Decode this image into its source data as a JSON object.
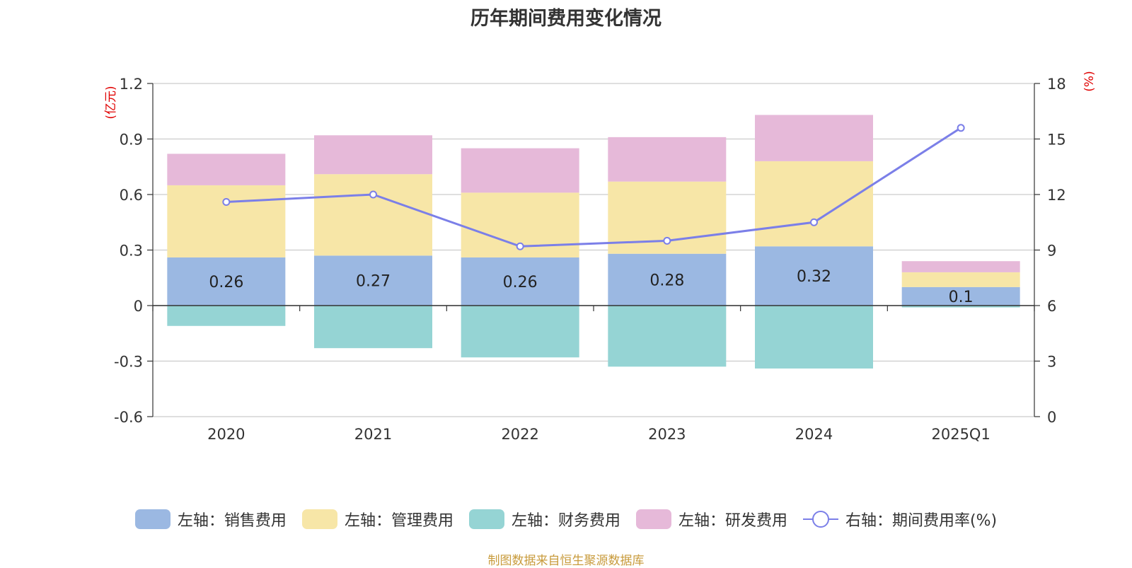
{
  "chart_data": {
    "type": "bar",
    "title": "历年期间费用变化情况",
    "categories": [
      "2020",
      "2021",
      "2022",
      "2023",
      "2024",
      "2025Q1"
    ],
    "left_axis": {
      "unit_label": "(亿元)",
      "ylim": [
        -0.6,
        1.2
      ],
      "ticks": [
        "1.2",
        "0.9",
        "0.6",
        "0.3",
        "0",
        "-0.3",
        "-0.6"
      ]
    },
    "right_axis": {
      "unit_label": "(%)",
      "ylim": [
        0,
        18
      ],
      "ticks": [
        "18",
        "15",
        "12",
        "9",
        "6",
        "3",
        "0"
      ]
    },
    "series": [
      {
        "name": "左轴：销售费用",
        "type": "bar",
        "axis": "left",
        "color": "#9bb8e2",
        "values": [
          0.26,
          0.27,
          0.26,
          0.28,
          0.32,
          0.1
        ],
        "labels": [
          "0.26",
          "0.27",
          "0.26",
          "0.28",
          "0.32",
          "0.1"
        ]
      },
      {
        "name": "左轴：管理费用",
        "type": "bar",
        "axis": "left",
        "color": "#f7e6a7",
        "values": [
          0.39,
          0.44,
          0.35,
          0.39,
          0.46,
          0.08
        ]
      },
      {
        "name": "左轴：财务费用",
        "type": "bar",
        "axis": "left",
        "color": "#95d4d4",
        "values": [
          -0.11,
          -0.23,
          -0.28,
          -0.33,
          -0.34,
          -0.01
        ]
      },
      {
        "name": "左轴：研发费用",
        "type": "bar",
        "axis": "left",
        "color": "#e6b9d9",
        "values": [
          0.17,
          0.21,
          0.24,
          0.24,
          0.25,
          0.06
        ]
      },
      {
        "name": "右轴：期间费用率(%)",
        "type": "line",
        "axis": "right",
        "color": "#7b7fe8",
        "values": [
          11.6,
          12.0,
          9.2,
          9.5,
          10.5,
          15.6
        ]
      }
    ],
    "grid": true,
    "legend_position": "bottom"
  },
  "footer": {
    "source_note": "制图数据来自恒生聚源数据库"
  }
}
